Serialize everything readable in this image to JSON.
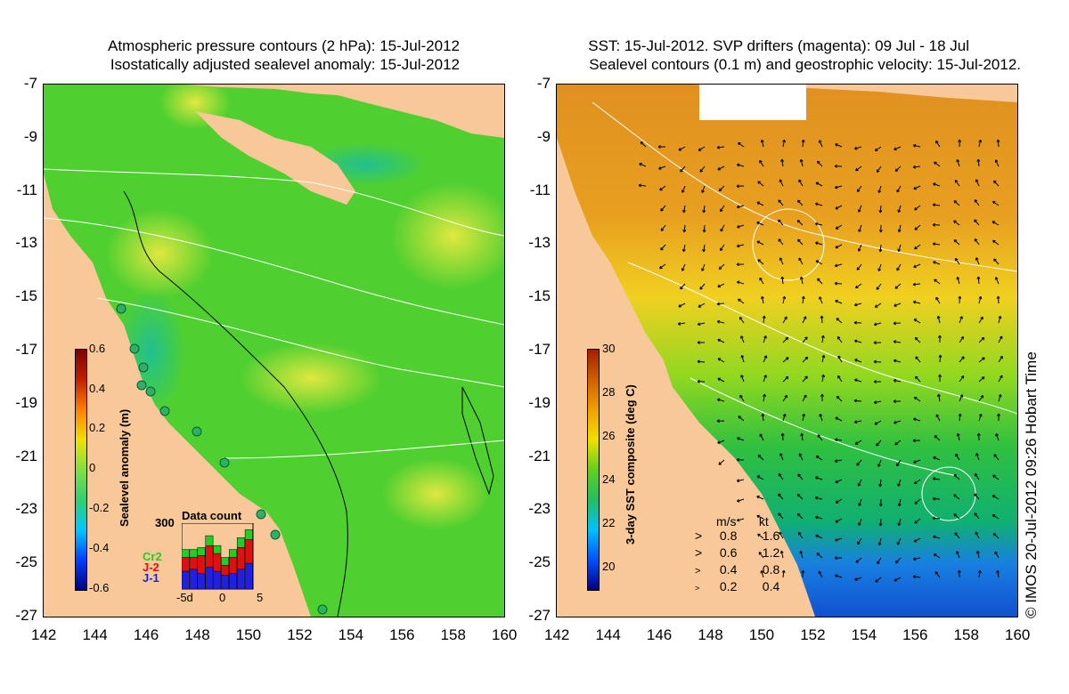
{
  "left_panel": {
    "title_line1": "Atmospheric pressure contours (2 hPa): 15-Jul-2012",
    "title_line2": "Isostatically adjusted sealevel anomaly: 15-Jul-2012",
    "colorbar": {
      "label": "Sealevel anomaly (m)",
      "ticks": [
        "0.6",
        "0.4",
        "0.2",
        "0",
        "-0.2",
        "-0.4",
        "-0.6"
      ],
      "colors": [
        "#00007f",
        "#0040ff",
        "#00c8ff",
        "#30d070",
        "#80e040",
        "#f0e000",
        "#ff8000",
        "#c02000",
        "#800000"
      ]
    },
    "data_count": {
      "title": "Data count",
      "max_label": "300",
      "x_labels": [
        "-5d",
        "0",
        "5"
      ],
      "series": [
        {
          "name": "Cr2",
          "color": "#20d020",
          "values": [
            40,
            40,
            40,
            50,
            40,
            40,
            40,
            50,
            50
          ]
        },
        {
          "name": "J-2",
          "color": "#e01010",
          "values": [
            70,
            60,
            90,
            110,
            90,
            50,
            80,
            110,
            120
          ]
        },
        {
          "name": "J-1",
          "color": "#2020e0",
          "values": [
            90,
            100,
            80,
            110,
            90,
            70,
            80,
            100,
            130
          ]
        }
      ]
    }
  },
  "right_panel": {
    "title_line1": "SST: 15-Jul-2012. SVP drifters (magenta): 09 Jul - 18 Jul",
    "title_line2": "Sealevel contours (0.1 m) and geostrophic velocity: 15-Jul-2012.",
    "colorbar": {
      "label": "3-day SST composite (deg C)",
      "ticks": [
        "30",
        "28",
        "26",
        "24",
        "22",
        "20"
      ],
      "colors": [
        "#00007f",
        "#0050ff",
        "#00c0ff",
        "#20c060",
        "#60d020",
        "#f0e000",
        "#f0a000",
        "#d06000",
        "#a02000"
      ]
    },
    "velocity_legend": {
      "header_ms": "m/s",
      "header_kt": "kt",
      "rows": [
        {
          "ms": "0.8",
          "kt": "1.6"
        },
        {
          "ms": "0.6",
          "kt": "1.2"
        },
        {
          "ms": "0.4",
          "kt": "0.8"
        },
        {
          "ms": "0.2",
          "kt": "0.4"
        }
      ]
    },
    "credit": "© IMOS 20-Jul-2012 09:26 Hobart Time"
  },
  "axes": {
    "x_ticks": [
      "142",
      "144",
      "146",
      "148",
      "150",
      "152",
      "154",
      "156",
      "158",
      "160"
    ],
    "y_ticks": [
      "-7",
      "-9",
      "-11",
      "-13",
      "-15",
      "-17",
      "-19",
      "-21",
      "-23",
      "-25",
      "-27"
    ],
    "lon_range": [
      142,
      160
    ],
    "lat_range": [
      -27,
      -7
    ]
  },
  "colors": {
    "land": "#f8c898",
    "sea_green": "#50d030",
    "sea_yellow": "#c8e840",
    "sst_orange": "#e89020",
    "sst_blue": "#1060e0"
  }
}
